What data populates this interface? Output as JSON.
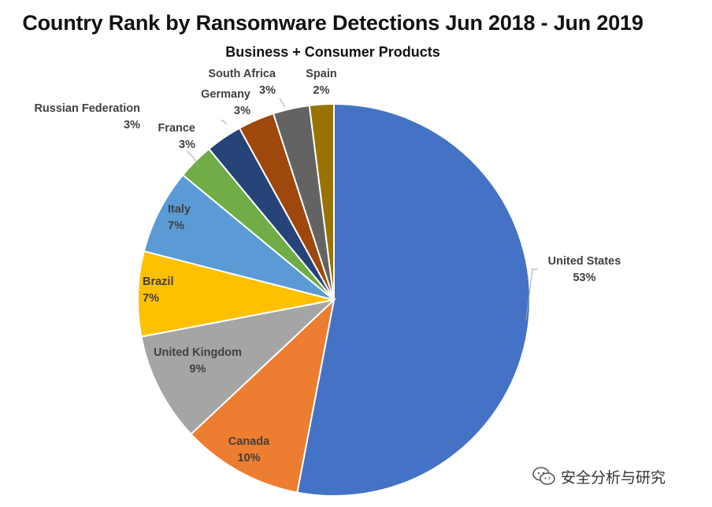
{
  "chart_data": {
    "type": "pie",
    "title": "Country Rank by Ransomware Detections Jun 2018 - Jun 2019",
    "subtitle": "Business + Consumer Products",
    "slices": [
      {
        "name": "United States",
        "label": "53%",
        "value": 53,
        "color": "#4472c4"
      },
      {
        "name": "Canada",
        "label": "10%",
        "value": 10,
        "color": "#ed7d31"
      },
      {
        "name": "United Kingdom",
        "label": "9%",
        "value": 9,
        "color": "#a5a5a5"
      },
      {
        "name": "Brazil",
        "label": "7%",
        "value": 7,
        "color": "#ffc000"
      },
      {
        "name": "Italy",
        "label": "7%",
        "value": 7,
        "color": "#5b9bd5"
      },
      {
        "name": "France",
        "label": "3%",
        "value": 3,
        "color": "#70ad47"
      },
      {
        "name": "Russian Federation",
        "label": "3%",
        "value": 3,
        "color": "#264478"
      },
      {
        "name": "Germany",
        "label": "3%",
        "value": 3,
        "color": "#9e480e"
      },
      {
        "name": "South Africa",
        "label": "3%",
        "value": 3,
        "color": "#636363"
      },
      {
        "name": "Spain",
        "label": "2%",
        "value": 2,
        "color": "#997300"
      }
    ]
  },
  "watermark": {
    "text": "安全分析与研究",
    "icon": "wechat-icon"
  }
}
